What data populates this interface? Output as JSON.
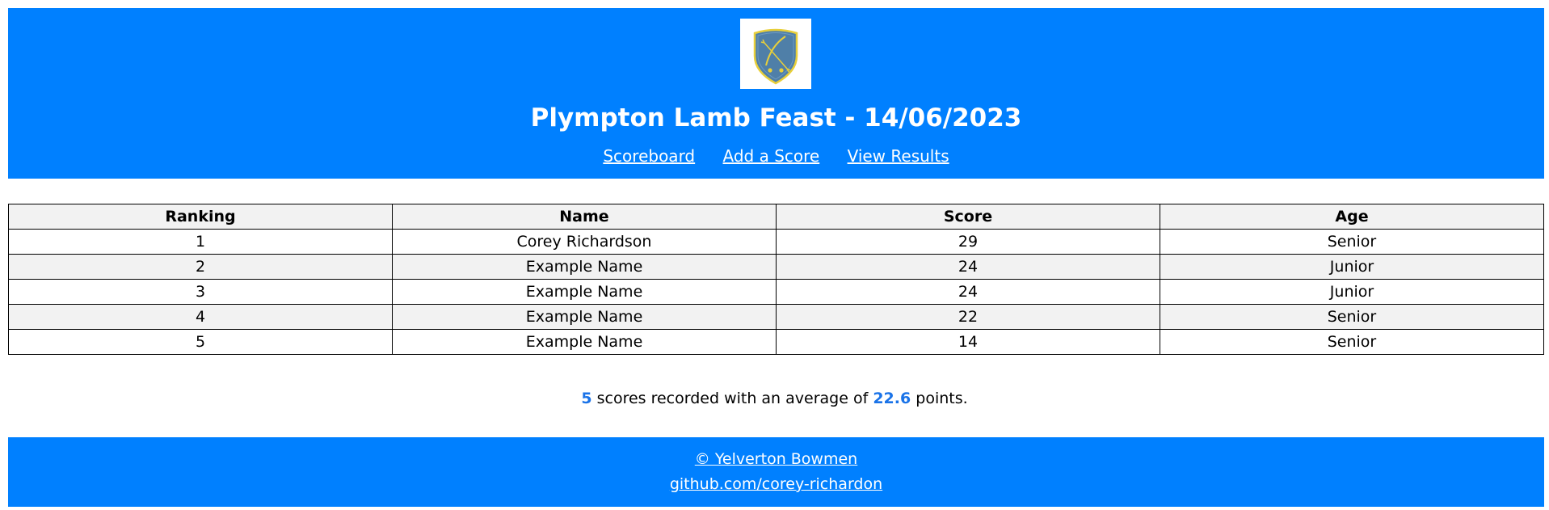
{
  "header": {
    "logo_icon": "club-crest-shield-icon",
    "title": "Plympton Lamb Feast - 14/06/2023",
    "nav": [
      {
        "label": "Scoreboard"
      },
      {
        "label": "Add a Score"
      },
      {
        "label": "View Results"
      }
    ]
  },
  "table": {
    "headers": [
      "Ranking",
      "Name",
      "Score",
      "Age"
    ],
    "rows": [
      [
        "1",
        "Corey Richardson",
        "29",
        "Senior"
      ],
      [
        "2",
        "Example Name",
        "24",
        "Junior"
      ],
      [
        "3",
        "Example Name",
        "24",
        "Junior"
      ],
      [
        "4",
        "Example Name",
        "22",
        "Senior"
      ],
      [
        "5",
        "Example Name",
        "14",
        "Senior"
      ]
    ]
  },
  "summary": {
    "count": "5",
    "text_middle": "scores recorded with an average of",
    "average": "22.6",
    "text_end": "points."
  },
  "footer": {
    "copyright": "© Yelverton Bowmen",
    "github": "github.com/corey-richardon"
  },
  "colors": {
    "brand_blue": "#0080ff",
    "highlight_blue": "#1a73e8",
    "row_alt": "#f2f2f2"
  }
}
